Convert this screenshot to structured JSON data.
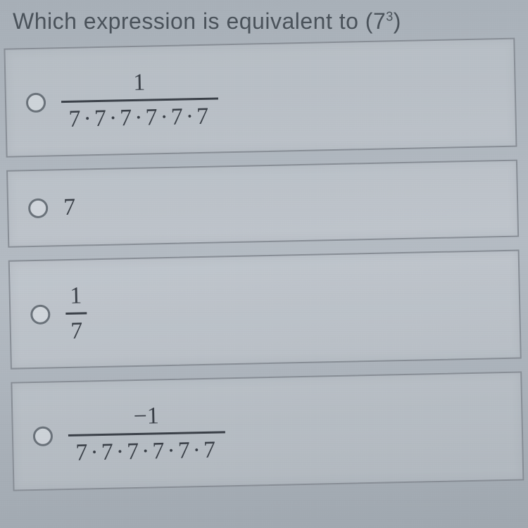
{
  "question": {
    "prefix": "Which expression is equivalent to (7",
    "exponent": "3",
    "suffix": ")"
  },
  "options": [
    {
      "type": "fraction",
      "numerator": "1",
      "denominator": "7·7·7·7·7·7",
      "tall": true,
      "name": "option-a"
    },
    {
      "type": "plain",
      "value": "7",
      "tall": false,
      "name": "option-b"
    },
    {
      "type": "small-fraction",
      "numerator": "1",
      "denominator": "7",
      "tall": true,
      "name": "option-c"
    },
    {
      "type": "fraction",
      "numerator": "−1",
      "denominator": "7·7·7·7·7·7",
      "tall": true,
      "name": "option-d"
    }
  ],
  "colors": {
    "text": "#4a525a",
    "math": "#3a4048",
    "border": "#888e96",
    "radio_border": "#6a727a"
  }
}
